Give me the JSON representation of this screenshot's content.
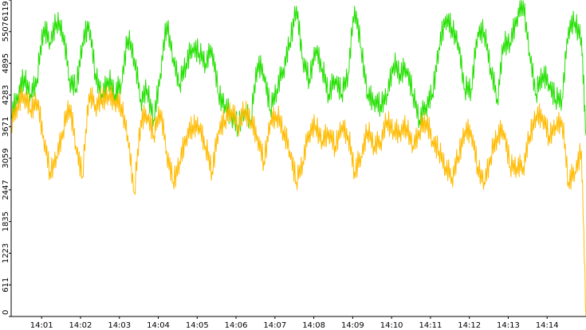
{
  "chart_data": {
    "type": "line",
    "title": "",
    "xlabel": "",
    "ylabel": "",
    "ylim": [
      0,
      6119
    ],
    "xlim": [
      "14:00:13",
      "14:15:00"
    ],
    "y_ticks": [
      "0",
      "611",
      "1223",
      "1835",
      "2447",
      "3059",
      "3671",
      "4283",
      "4895",
      "5507",
      "6119"
    ],
    "x_ticks": [
      "14:01",
      "14:02",
      "14:03",
      "14:04",
      "14:05",
      "14:06",
      "14:07",
      "14:08",
      "14:09",
      "14:10",
      "14:11",
      "14:12",
      "14:13",
      "14:14"
    ],
    "grid": false,
    "legend": "none",
    "series": [
      {
        "color": "#22e000",
        "x": [
          "14:00:13",
          "14:00:23",
          "14:00:33",
          "14:00:43",
          "14:00:53",
          "14:01:03",
          "14:01:13",
          "14:01:23",
          "14:01:33",
          "14:01:43",
          "14:01:53",
          "14:02:03",
          "14:02:13",
          "14:02:23",
          "14:02:33",
          "14:02:43",
          "14:02:53",
          "14:03:03",
          "14:03:13",
          "14:03:23",
          "14:03:33",
          "14:03:43",
          "14:03:53",
          "14:04:03",
          "14:04:13",
          "14:04:23",
          "14:04:33",
          "14:04:43",
          "14:04:53",
          "14:05:03",
          "14:05:13",
          "14:05:23",
          "14:05:33",
          "14:05:43",
          "14:05:53",
          "14:06:03",
          "14:06:13",
          "14:06:23",
          "14:06:33",
          "14:06:43",
          "14:06:53",
          "14:07:03",
          "14:07:13",
          "14:07:23",
          "14:07:33",
          "14:07:43",
          "14:07:53",
          "14:08:03",
          "14:08:13",
          "14:08:23",
          "14:08:33",
          "14:08:43",
          "14:08:53",
          "14:09:03",
          "14:09:13",
          "14:09:23",
          "14:09:33",
          "14:09:43",
          "14:09:53",
          "14:10:03",
          "14:10:13",
          "14:10:23",
          "14:10:33",
          "14:10:43",
          "14:10:53",
          "14:11:03",
          "14:11:13",
          "14:11:23",
          "14:11:33",
          "14:11:43",
          "14:11:53",
          "14:12:03",
          "14:12:13",
          "14:12:23",
          "14:12:33",
          "14:12:43",
          "14:12:53",
          "14:13:03",
          "14:13:13",
          "14:13:23",
          "14:13:33",
          "14:13:43",
          "14:13:53",
          "14:14:03",
          "14:14:13",
          "14:14:23",
          "14:14:33",
          "14:14:43",
          "14:14:53",
          "14:15:00"
        ],
        "values": [
          3900,
          4300,
          4650,
          4300,
          4600,
          5600,
          5300,
          5700,
          5500,
          4600,
          4400,
          5300,
          5700,
          4700,
          4300,
          4600,
          4300,
          4500,
          5400,
          5000,
          4200,
          4400,
          3800,
          4700,
          5700,
          5000,
          4500,
          4900,
          5200,
          5100,
          4900,
          5200,
          4300,
          4100,
          3900,
          3700,
          4000,
          3800,
          4900,
          4700,
          4000,
          4400,
          4800,
          5300,
          6000,
          5000,
          4600,
          5200,
          4800,
          4300,
          4600,
          4300,
          4700,
          6000,
          5200,
          4300,
          4200,
          4100,
          4300,
          4900,
          4700,
          4800,
          4300,
          3800,
          4100,
          4300,
          5200,
          5800,
          5600,
          5300,
          4400,
          4400,
          5500,
          5500,
          4800,
          4200,
          5300,
          5300,
          5800,
          6100,
          5100,
          4300,
          4700,
          4500,
          4200,
          4200,
          5600,
          5700,
          5400,
          3500
        ]
      },
      {
        "color": "#ffbb00",
        "x": [
          "14:00:13",
          "14:00:23",
          "14:00:33",
          "14:00:43",
          "14:00:53",
          "14:01:03",
          "14:01:13",
          "14:01:23",
          "14:01:33",
          "14:01:43",
          "14:01:53",
          "14:02:03",
          "14:02:13",
          "14:02:23",
          "14:02:33",
          "14:02:43",
          "14:02:53",
          "14:03:03",
          "14:03:13",
          "14:03:23",
          "14:03:33",
          "14:03:43",
          "14:03:53",
          "14:04:03",
          "14:04:13",
          "14:04:23",
          "14:04:33",
          "14:04:43",
          "14:04:53",
          "14:05:03",
          "14:05:13",
          "14:05:23",
          "14:05:33",
          "14:05:43",
          "14:05:53",
          "14:06:03",
          "14:06:13",
          "14:06:23",
          "14:06:33",
          "14:06:43",
          "14:06:53",
          "14:07:03",
          "14:07:13",
          "14:07:23",
          "14:07:33",
          "14:07:43",
          "14:07:53",
          "14:08:03",
          "14:08:13",
          "14:08:23",
          "14:08:33",
          "14:08:43",
          "14:08:53",
          "14:09:03",
          "14:09:13",
          "14:09:23",
          "14:09:33",
          "14:09:43",
          "14:09:53",
          "14:10:03",
          "14:10:13",
          "14:10:23",
          "14:10:33",
          "14:10:43",
          "14:10:53",
          "14:11:03",
          "14:11:13",
          "14:11:23",
          "14:11:33",
          "14:11:43",
          "14:11:53",
          "14:12:03",
          "14:12:13",
          "14:12:23",
          "14:12:33",
          "14:12:43",
          "14:12:53",
          "14:13:03",
          "14:13:13",
          "14:13:23",
          "14:13:33",
          "14:13:43",
          "14:13:53",
          "14:14:03",
          "14:14:13",
          "14:14:23",
          "14:14:33",
          "14:14:43",
          "14:14:53",
          "14:15:00"
        ],
        "values": [
          3700,
          4100,
          4300,
          4000,
          4200,
          3500,
          2800,
          3100,
          3600,
          4100,
          3300,
          2700,
          4300,
          4100,
          4200,
          4300,
          4200,
          4100,
          3500,
          2400,
          3800,
          3900,
          3500,
          4000,
          3200,
          2600,
          3000,
          3500,
          3700,
          3700,
          3300,
          2800,
          3600,
          3800,
          4000,
          3700,
          4000,
          3800,
          3500,
          3000,
          3800,
          3900,
          3600,
          3200,
          2600,
          3000,
          3600,
          3700,
          3400,
          3600,
          3300,
          3700,
          3500,
          2800,
          3100,
          3600,
          3300,
          3400,
          3800,
          3600,
          3600,
          3700,
          3300,
          3600,
          3800,
          3400,
          3200,
          2900,
          2700,
          3100,
          3600,
          3600,
          2900,
          2600,
          3100,
          3500,
          3600,
          2900,
          2900,
          2900,
          3500,
          3900,
          3900,
          3500,
          3700,
          3800,
          2600,
          2800,
          3200,
          0
        ]
      }
    ]
  }
}
